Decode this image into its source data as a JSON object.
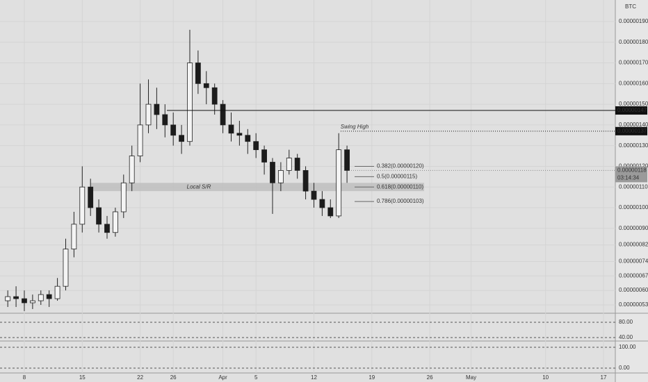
{
  "chart_data": {
    "type": "candlestick",
    "currency": "BTC",
    "x": [
      6,
      7,
      8,
      9,
      10,
      11,
      12,
      13,
      14,
      15,
      16,
      17,
      18,
      19,
      20,
      21,
      22,
      23,
      24,
      25,
      26,
      27,
      28,
      29,
      30,
      31,
      32,
      33,
      34,
      35,
      36,
      37,
      38,
      39,
      40,
      41,
      42,
      43,
      44,
      45,
      46,
      47
    ],
    "open": [
      5.5e-07,
      5.7e-07,
      5.6e-07,
      5.4e-07,
      5.5e-07,
      5.8e-07,
      5.6e-07,
      6.2e-07,
      8e-07,
      9.2e-07,
      1.1e-06,
      1e-06,
      9.2e-07,
      8.8e-07,
      9.8e-07,
      1.12e-06,
      1.25e-06,
      1.4e-06,
      1.5e-06,
      1.45e-06,
      1.4e-06,
      1.35e-06,
      1.32e-06,
      1.7e-06,
      1.6e-06,
      1.58e-06,
      1.5e-06,
      1.4e-06,
      1.36e-06,
      1.35e-06,
      1.32e-06,
      1.28e-06,
      1.22e-06,
      1.12e-06,
      1.18e-06,
      1.24e-06,
      1.18e-06,
      1.08e-06,
      1.04e-06,
      1e-06,
      9.6e-07,
      1.28e-06
    ],
    "high": [
      6e-07,
      6.2e-07,
      6e-07,
      5.8e-07,
      6e-07,
      6e-07,
      6.6e-07,
      8.5e-07,
      9.8e-07,
      1.2e-06,
      1.14e-06,
      1.04e-06,
      9.6e-07,
      1e-06,
      1.16e-06,
      1.3e-06,
      1.6e-06,
      1.62e-06,
      1.58e-06,
      1.5e-06,
      1.46e-06,
      1.4e-06,
      1.86e-06,
      1.76e-06,
      1.66e-06,
      1.6e-06,
      1.52e-06,
      1.46e-06,
      1.42e-06,
      1.38e-06,
      1.36e-06,
      1.3e-06,
      1.24e-06,
      1.22e-06,
      1.28e-06,
      1.26e-06,
      1.2e-06,
      1.12e-06,
      1.08e-06,
      1.04e-06,
      1.36e-06,
      1.3e-06
    ],
    "low": [
      5.2e-07,
      5.2e-07,
      5e-07,
      5.1e-07,
      5.3e-07,
      5.2e-07,
      5.5e-07,
      6e-07,
      7.6e-07,
      8.8e-07,
      9.6e-07,
      8.8e-07,
      8.5e-07,
      8.6e-07,
      9.5e-07,
      1.08e-06,
      1.22e-06,
      1.36e-06,
      1.38e-06,
      1.34e-06,
      1.3e-06,
      1.26e-06,
      1.3e-06,
      1.55e-06,
      1.5e-06,
      1.45e-06,
      1.36e-06,
      1.32e-06,
      1.3e-06,
      1.26e-06,
      1.24e-06,
      1.16e-06,
      9.7e-07,
      1.08e-06,
      1.16e-06,
      1.14e-06,
      1.04e-06,
      1e-06,
      9.6e-07,
      9.5e-07,
      9.5e-07,
      1.12e-06
    ],
    "close": [
      5.7e-07,
      5.6e-07,
      5.4e-07,
      5.5e-07,
      5.8e-07,
      5.6e-07,
      6.2e-07,
      8e-07,
      9.2e-07,
      1.1e-06,
      1e-06,
      9.2e-07,
      8.8e-07,
      9.8e-07,
      1.12e-06,
      1.25e-06,
      1.4e-06,
      1.5e-06,
      1.45e-06,
      1.4e-06,
      1.35e-06,
      1.32e-06,
      1.7e-06,
      1.6e-06,
      1.58e-06,
      1.5e-06,
      1.4e-06,
      1.36e-06,
      1.35e-06,
      1.32e-06,
      1.28e-06,
      1.22e-06,
      1.12e-06,
      1.18e-06,
      1.24e-06,
      1.18e-06,
      1.08e-06,
      1.04e-06,
      1e-06,
      9.6e-07,
      1.28e-06,
      1.18e-06
    ],
    "up_color": "#f4f4f4",
    "down_color": "#1c1c1c",
    "xlim": [
      5.06,
      79.43
    ],
    "xticks": [
      {
        "value": 8,
        "label": "8"
      },
      {
        "value": 15,
        "label": "15"
      },
      {
        "value": 22,
        "label": "22"
      },
      {
        "value": 26,
        "label": "26"
      },
      {
        "value": 32,
        "label": "Apr"
      },
      {
        "value": 36,
        "label": "5"
      },
      {
        "value": 43,
        "label": "12"
      },
      {
        "value": 50,
        "label": "19"
      },
      {
        "value": 57,
        "label": "26"
      },
      {
        "value": 62,
        "label": "May"
      },
      {
        "value": 71,
        "label": "10"
      },
      {
        "value": 78,
        "label": "17"
      }
    ],
    "ylim": [
      4.93e-07,
      2.004e-06
    ],
    "yticks": [
      {
        "value": 1.9e-06,
        "label": "0.00000190"
      },
      {
        "value": 1.8e-06,
        "label": "0.00000180"
      },
      {
        "value": 1.7e-06,
        "label": "0.00000170"
      },
      {
        "value": 1.6e-06,
        "label": "0.00000160"
      },
      {
        "value": 1.5e-06,
        "label": "0.00000150"
      },
      {
        "value": 1.4e-06,
        "label": "0.00000140"
      },
      {
        "value": 1.3e-06,
        "label": "0.00000130"
      },
      {
        "value": 1.2e-06,
        "label": "0.00000120"
      },
      {
        "value": 1.1e-06,
        "label": "0.00000110"
      },
      {
        "value": 1e-06,
        "label": "0.00000100"
      },
      {
        "value": 9e-07,
        "label": "0.00000090"
      },
      {
        "value": 8.2e-07,
        "label": "0.00000082"
      },
      {
        "value": 7.4e-07,
        "label": "0.00000074"
      },
      {
        "value": 6.7e-07,
        "label": "0.00000067"
      },
      {
        "value": 6e-07,
        "label": "0.00000060"
      },
      {
        "value": 5.3e-07,
        "label": "0.00000053"
      }
    ],
    "grid": true,
    "levels": [
      {
        "value": 1.47e-06,
        "label": "0.00000147",
        "style": "solid"
      },
      {
        "value": 1.37e-06,
        "label": "0.00000137",
        "style": "dotted",
        "annotation": "Swing High"
      }
    ],
    "last_price": {
      "value": 1.18e-06,
      "label": "0.00000118",
      "countdown": "03:14:34"
    },
    "support_zone": {
      "label": "Local S/R",
      "low": 1.08e-06,
      "high": 1.12e-06
    },
    "fib_levels": [
      {
        "value": 1.2e-06,
        "label": "0.382(0.00000120)"
      },
      {
        "value": 1.15e-06,
        "label": "0.5(0.00000115)"
      },
      {
        "value": 1.1e-06,
        "label": "0.618(0.00000110)"
      },
      {
        "value": 1.03e-06,
        "label": "0.786(0.00000103)"
      }
    ],
    "rsi": {
      "ylim": [
        32.7,
        101.8
      ],
      "yticks": [
        {
          "value": 80,
          "label": "80.00"
        },
        {
          "value": 40,
          "label": "40.00"
        }
      ]
    },
    "stoch": {
      "ylim": [
        -26.7,
        126.7
      ],
      "yticks": [
        {
          "value": 100,
          "label": "100.00"
        },
        {
          "value": 0,
          "label": "0.00"
        }
      ]
    }
  }
}
